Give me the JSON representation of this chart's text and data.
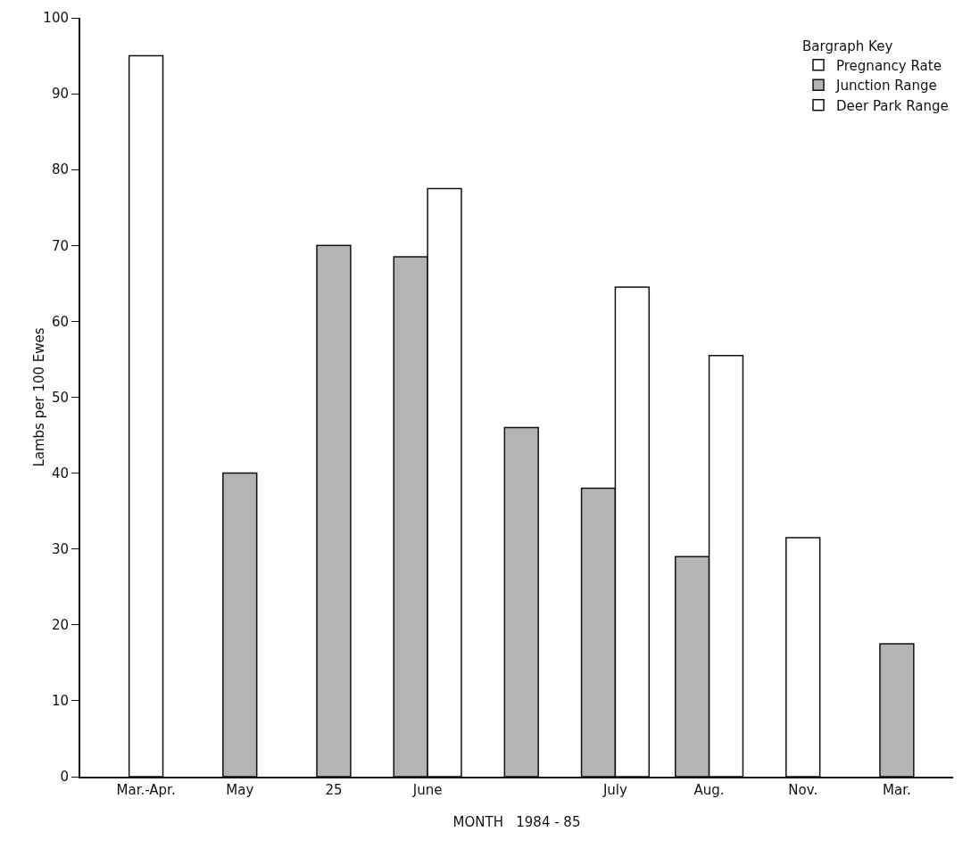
{
  "chart_data": {
    "type": "bar",
    "xlabel": "MONTH   1984 - 85",
    "ylabel": "Lambs per 100 Ewes",
    "legend_title": "Bargraph Key",
    "categories": [
      "Mar.-Apr.",
      "May",
      "25",
      "June",
      null,
      "July",
      "Aug.",
      "Nov.",
      "Mar."
    ],
    "series": [
      {
        "name": "Pregnancy Rate",
        "color": "#ffffff",
        "values": [
          95,
          null,
          null,
          null,
          null,
          null,
          null,
          null,
          null
        ]
      },
      {
        "name": "Junction Range",
        "color": "#b4b4b4",
        "values": [
          null,
          40,
          70,
          68.5,
          46,
          38,
          29,
          null,
          17.5
        ]
      },
      {
        "name": "Deer Park Range",
        "color": "#ffffff",
        "values": [
          null,
          null,
          null,
          77.5,
          null,
          64.5,
          55.5,
          31.5,
          null
        ]
      }
    ],
    "ylim": [
      0,
      100
    ],
    "yticks": [
      0,
      10,
      20,
      30,
      40,
      50,
      60,
      70,
      80,
      90,
      100
    ],
    "grid": false,
    "legend": "top right"
  }
}
